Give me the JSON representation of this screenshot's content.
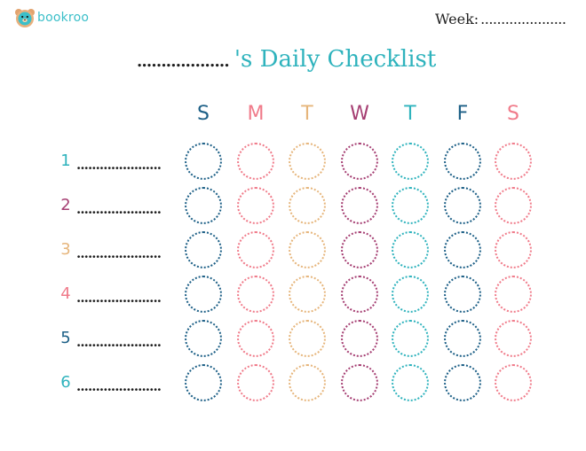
{
  "brand": {
    "name": "bookroo",
    "color": "#3bbfc9"
  },
  "week": {
    "label": "Week:",
    "blank": "....................."
  },
  "title": {
    "blank": "...................",
    "text": "'s Daily Checklist",
    "color": "#2fb3bd"
  },
  "days": [
    {
      "label": "S",
      "color": "#1c5f86"
    },
    {
      "label": "M",
      "color": "#f07b8a"
    },
    {
      "label": "T",
      "color": "#e6b57b"
    },
    {
      "label": "W",
      "color": "#a53e72"
    },
    {
      "label": "T",
      "color": "#2fb3bd"
    },
    {
      "label": "F",
      "color": "#1c5f86"
    },
    {
      "label": "S",
      "color": "#f07b8a"
    }
  ],
  "rows": [
    {
      "number": "1",
      "color": "#2fb3bd",
      "blank": "......................"
    },
    {
      "number": "2",
      "color": "#a53e72",
      "blank": "......................"
    },
    {
      "number": "3",
      "color": "#e6b57b",
      "blank": "......................"
    },
    {
      "number": "4",
      "color": "#f07b8a",
      "blank": "......................"
    },
    {
      "number": "5",
      "color": "#1c5f86",
      "blank": "......................"
    },
    {
      "number": "6",
      "color": "#2fb3bd",
      "blank": "......................"
    }
  ]
}
